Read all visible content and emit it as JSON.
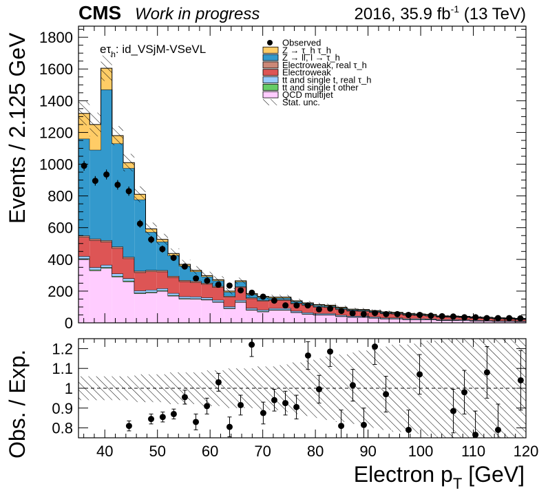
{
  "header": {
    "experiment": "CMS",
    "status": "Work in progress",
    "lumi_prefix": "2016, 35.9 fb",
    "lumi_exp": "-1",
    "lumi_suffix": " (13 TeV)"
  },
  "channel_label": {
    "e": "e",
    "tau": "τ",
    "tau_sub": "h",
    "rest": ": id_VSjM-VSeVL"
  },
  "axis_labels": {
    "y_main": "Events / 2.125 GeV",
    "y_ratio": "Obs. / Exp.",
    "x_main": "Electron p",
    "x_sub": "T",
    "x_unit": " [GeV]"
  },
  "legend": [
    {
      "label": "Observed",
      "kind": "marker",
      "color": "#000000"
    },
    {
      "label": "Z → τ_h τ_h",
      "kind": "box",
      "color": "#ffcc66"
    },
    {
      "label": "Z → ll, l → τ_h",
      "kind": "box",
      "color": "#3399cc"
    },
    {
      "label": "Electroweak, real τ_h",
      "kind": "box",
      "color": "#cc8877"
    },
    {
      "label": "Electroweak",
      "kind": "box",
      "color": "#dd5555"
    },
    {
      "label": "tt and single t, real τ_h",
      "kind": "box",
      "color": "#99ccff"
    },
    {
      "label": "tt and single t other",
      "kind": "box",
      "color": "#66cc66"
    },
    {
      "label": "QCD multijet",
      "kind": "box",
      "color": "#ffccff"
    },
    {
      "label": "Stat. unc.",
      "kind": "hatch",
      "color": "#000000"
    }
  ],
  "chart_data": [
    {
      "type": "bar",
      "stacked": true,
      "x_label": "Electron p_T [GeV]",
      "y_label": "Events / 2.125 GeV",
      "xlim": [
        35,
        120
      ],
      "ylim": [
        0,
        1870
      ],
      "x_ticks": [
        40,
        50,
        60,
        70,
        80,
        90,
        100,
        110,
        120
      ],
      "y_ticks": [
        0,
        200,
        400,
        600,
        800,
        1000,
        1200,
        1400,
        1600,
        1800
      ],
      "bin_edges": [
        35,
        37.125,
        39.25,
        41.375,
        43.5,
        45.625,
        47.75,
        49.875,
        52,
        54.125,
        56.25,
        58.375,
        60.5,
        62.625,
        64.75,
        66.875,
        69,
        71.125,
        73.25,
        75.375,
        77.5,
        79.625,
        81.75,
        83.875,
        86,
        88.125,
        90.25,
        92.375,
        94.5,
        96.625,
        98.75,
        100.875,
        103,
        105.125,
        107.25,
        109.375,
        111.5,
        113.625,
        115.75,
        117.875,
        120
      ],
      "series": [
        {
          "name": "QCD multijet",
          "color": "#ffccff",
          "values": [
            400,
            330,
            345,
            290,
            260,
            185,
            190,
            200,
            170,
            150,
            150,
            145,
            130,
            90,
            130,
            80,
            70,
            80,
            80,
            65,
            55,
            50,
            50,
            40,
            35,
            35,
            30,
            25,
            25,
            20,
            20,
            20,
            15,
            15,
            15,
            12,
            12,
            10,
            10,
            8
          ]
        },
        {
          "name": "tt and single t other",
          "color": "#66cc66",
          "values": [
            5,
            5,
            5,
            5,
            5,
            4,
            4,
            4,
            4,
            4,
            3,
            3,
            3,
            3,
            3,
            3,
            3,
            3,
            3,
            2,
            2,
            2,
            2,
            2,
            2,
            2,
            2,
            2,
            2,
            2,
            2,
            2,
            2,
            2,
            1,
            1,
            1,
            1,
            1,
            1
          ]
        },
        {
          "name": "tt and single t, real τ_h",
          "color": "#99ccff",
          "values": [
            15,
            15,
            15,
            15,
            15,
            14,
            14,
            13,
            13,
            12,
            12,
            11,
            11,
            10,
            10,
            10,
            9,
            9,
            9,
            8,
            8,
            7,
            7,
            7,
            6,
            6,
            6,
            5,
            5,
            5,
            5,
            4,
            4,
            4,
            4,
            4,
            3,
            3,
            3,
            3
          ]
        },
        {
          "name": "Electroweak",
          "color": "#dd5555",
          "values": [
            120,
            170,
            145,
            160,
            125,
            115,
            115,
            105,
            100,
            95,
            90,
            85,
            80,
            60,
            80,
            60,
            55,
            50,
            50,
            45,
            45,
            40,
            38,
            35,
            32,
            30,
            28,
            26,
            24,
            22,
            20,
            18,
            16,
            15,
            14,
            13,
            12,
            11,
            10,
            9
          ]
        },
        {
          "name": "Electroweak, real τ_h",
          "color": "#cc8877",
          "values": [
            10,
            10,
            10,
            10,
            10,
            9,
            9,
            9,
            8,
            8,
            8,
            7,
            7,
            6,
            6,
            6,
            5,
            5,
            5,
            5,
            4,
            4,
            4,
            4,
            3,
            3,
            3,
            3,
            3,
            3,
            2,
            2,
            2,
            2,
            2,
            2,
            2,
            2,
            2,
            2
          ]
        },
        {
          "name": "Z → ll, l → τ_h",
          "color": "#3399cc",
          "values": [
            610,
            560,
            950,
            650,
            560,
            450,
            240,
            180,
            130,
            90,
            60,
            40,
            35,
            25,
            30,
            20,
            20,
            10,
            10,
            10,
            8,
            8,
            6,
            6,
            5,
            5,
            5,
            5,
            4,
            4,
            4,
            4,
            3,
            3,
            3,
            3,
            3,
            3,
            3,
            3
          ]
        },
        {
          "name": "Z → τ_h τ_h",
          "color": "#ffcc66",
          "values": [
            160,
            160,
            135,
            50,
            35,
            33,
            20,
            15,
            12,
            10,
            8,
            7,
            6,
            6,
            6,
            5,
            5,
            5,
            5,
            4,
            4,
            4,
            4,
            4,
            3,
            3,
            3,
            3,
            3,
            3,
            3,
            3,
            2,
            2,
            2,
            2,
            2,
            2,
            2,
            2
          ]
        }
      ],
      "total_uncertainty": [
        75,
        75,
        80,
        60,
        55,
        50,
        40,
        35,
        32,
        28,
        26,
        24,
        22,
        20,
        20,
        18,
        16,
        15,
        14,
        13,
        12,
        11,
        10,
        10,
        9,
        9,
        8,
        8,
        8,
        7,
        7,
        7,
        6,
        6,
        6,
        6,
        5,
        5,
        5,
        5
      ],
      "observed": {
        "name": "Observed",
        "values": [
          990,
          895,
          935,
          870,
          830,
          625,
          525,
          465,
          410,
          355,
          280,
          265,
          240,
          235,
          205,
          190,
          165,
          140,
          110,
          110,
          110,
          85,
          90,
          75,
          60,
          55,
          62,
          55,
          55,
          50,
          50,
          45,
          42,
          40,
          35,
          35,
          30,
          30,
          30,
          28
        ],
        "errors": [
          31,
          30,
          31,
          30,
          29,
          25,
          23,
          22,
          20,
          19,
          17,
          16,
          15,
          15,
          14,
          14,
          13,
          12,
          10,
          10,
          10,
          9,
          9,
          9,
          8,
          7,
          8,
          7,
          7,
          7,
          7,
          7,
          6,
          6,
          6,
          6,
          5,
          5,
          5,
          5
        ]
      }
    },
    {
      "type": "scatter",
      "x_label": "Electron p_T [GeV]",
      "y_label": "Obs. / Exp.",
      "xlim": [
        35,
        120
      ],
      "ylim": [
        0.75,
        1.25
      ],
      "x_ticks": [
        40,
        50,
        60,
        70,
        80,
        90,
        100,
        110,
        120
      ],
      "y_ticks": [
        0.8,
        0.9,
        1,
        1.1,
        1.2
      ],
      "reference_line": 1,
      "x": [
        44.6,
        48.8,
        51.0,
        53.1,
        55.2,
        57.3,
        59.4,
        61.6,
        63.7,
        65.8,
        67.9,
        70.1,
        72.2,
        74.3,
        76.4,
        78.6,
        80.7,
        82.8,
        84.9,
        87.1,
        89.2,
        91.3,
        93.4,
        97.7,
        99.8,
        106.2,
        108.3,
        110.4,
        112.6,
        114.7,
        119.0
      ],
      "y": [
        0.81,
        0.845,
        0.855,
        0.87,
        0.955,
        0.83,
        0.91,
        1.03,
        0.805,
        0.915,
        1.22,
        0.875,
        0.94,
        0.925,
        0.905,
        1.165,
        0.995,
        1.185,
        0.81,
        1.015,
        0.815,
        1.21,
        0.97,
        0.79,
        1.07,
        0.885,
        0.98,
        0.765,
        1.08,
        0.79,
        1.04
      ],
      "err": [
        0.025,
        0.025,
        0.025,
        0.025,
        0.035,
        0.04,
        0.04,
        0.045,
        0.05,
        0.05,
        0.06,
        0.055,
        0.055,
        0.06,
        0.06,
        0.07,
        0.07,
        0.075,
        0.08,
        0.08,
        0.085,
        0.09,
        0.09,
        0.1,
        0.1,
        0.11,
        0.11,
        0.12,
        0.13,
        0.13,
        0.15
      ],
      "band_edges": [
        35,
        37.125,
        39.25,
        41.375,
        43.5,
        45.625,
        47.75,
        49.875,
        52,
        54.125,
        56.25,
        58.375,
        60.5,
        62.625,
        64.75,
        66.875,
        69,
        71.125,
        73.25,
        75.375,
        77.5,
        79.625,
        81.75,
        83.875,
        86,
        88.125,
        90.25,
        92.375,
        94.5,
        96.625,
        98.75,
        100.875,
        103,
        105.125,
        107.25,
        109.375,
        111.5,
        113.625,
        115.75,
        117.875,
        120
      ],
      "band_halfwidth": [
        0.06,
        0.06,
        0.06,
        0.06,
        0.06,
        0.07,
        0.07,
        0.07,
        0.08,
        0.08,
        0.08,
        0.09,
        0.09,
        0.1,
        0.1,
        0.1,
        0.11,
        0.11,
        0.12,
        0.13,
        0.14,
        0.15,
        0.16,
        0.17,
        0.18,
        0.19,
        0.2,
        0.21,
        0.22,
        0.22,
        0.23,
        0.24,
        0.25,
        0.25,
        0.26,
        0.26,
        0.26,
        0.26,
        0.26,
        0.26
      ]
    }
  ]
}
